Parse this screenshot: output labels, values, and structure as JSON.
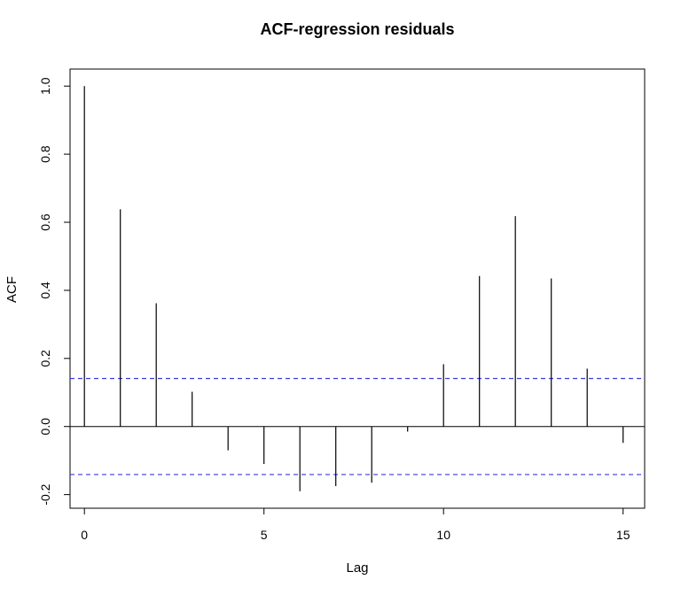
{
  "chart_data": {
    "type": "bar",
    "title": "ACF-regression residuals",
    "xlabel": "Lag",
    "ylabel": "ACF",
    "xlim": [
      -0.4,
      15.6
    ],
    "ylim": [
      -0.24,
      1.05
    ],
    "x_ticks": [
      0,
      5,
      10,
      15
    ],
    "x_tick_labels": [
      "0",
      "5",
      "10",
      "15"
    ],
    "y_ticks": [
      -0.2,
      0.0,
      0.2,
      0.4,
      0.6,
      0.8,
      1.0
    ],
    "y_tick_labels": [
      "-0.2",
      "0.0",
      "0.2",
      "0.4",
      "0.6",
      "0.8",
      "1.0"
    ],
    "lags": [
      0,
      1,
      2,
      3,
      4,
      5,
      6,
      7,
      8,
      9,
      10,
      11,
      12,
      13,
      14,
      15
    ],
    "values": [
      1.0,
      0.638,
      0.362,
      0.102,
      -0.07,
      -0.11,
      -0.19,
      -0.175,
      -0.165,
      -0.015,
      0.183,
      0.442,
      0.618,
      0.435,
      0.17,
      -0.048
    ],
    "confidence_bounds": [
      0.141,
      -0.141
    ],
    "zero_line": true,
    "grid": false,
    "colors": {
      "spikes": "#000000",
      "confidence": "#3b3bdc",
      "axes": "#000000"
    }
  }
}
